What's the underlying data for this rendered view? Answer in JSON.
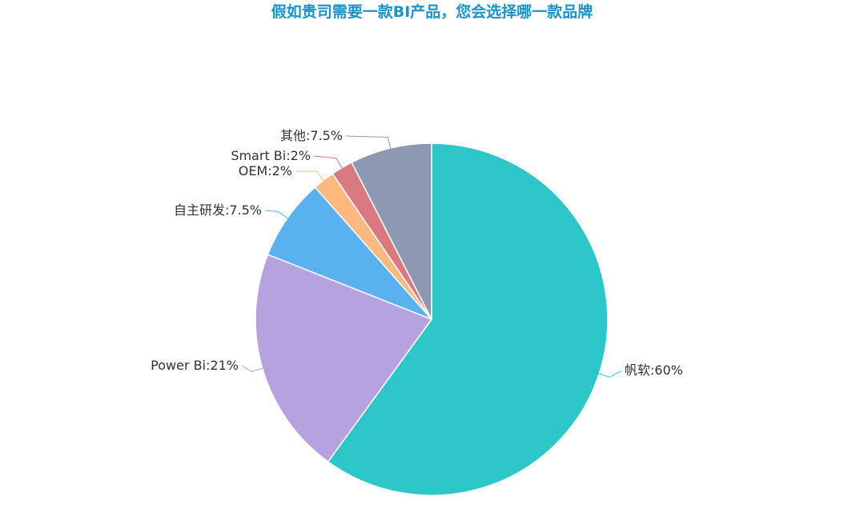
{
  "chart_data": {
    "type": "pie",
    "title": "假如贵司需要一款BI产品，您会选择哪一款品牌",
    "slices": [
      {
        "name": "帆软",
        "value": 60,
        "label": "帆软:60%",
        "color": "#2ec7c9"
      },
      {
        "name": "Power Bi",
        "value": 21,
        "label": "Power Bi:21%",
        "color": "#b6a2de"
      },
      {
        "name": "自主研发",
        "value": 7.5,
        "label": "自主研发:7.5%",
        "color": "#5ab1ef"
      },
      {
        "name": "OEM",
        "value": 2,
        "label": "OEM:2%",
        "color": "#ffb980"
      },
      {
        "name": "Smart Bi",
        "value": 2,
        "label": "Smart Bi:2%",
        "color": "#d87a80"
      },
      {
        "name": "其他",
        "value": 7.5,
        "label": "其他:7.5%",
        "color": "#8d98b3"
      }
    ],
    "start_angle": "12 o'clock",
    "direction": "clockwise",
    "legend": "none"
  }
}
